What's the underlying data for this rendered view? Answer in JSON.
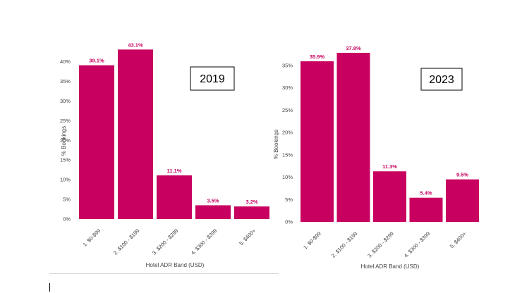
{
  "colors": {
    "bar": "#c8005f",
    "label": "#c8005f"
  },
  "chart_data": [
    {
      "type": "bar",
      "title": "2019",
      "categories": [
        "1. $0-$99",
        "2. $100 - $199",
        "3. $200 - $299",
        "4. $300 - $399",
        "5. $400+"
      ],
      "values": [
        39.1,
        43.1,
        11.1,
        3.5,
        3.2
      ],
      "data_labels": [
        "39.1%",
        "43.1%",
        "11.1%",
        "3.5%",
        "3.2%"
      ],
      "yticks": [
        0,
        5,
        10,
        15,
        20,
        25,
        30,
        35,
        40
      ],
      "ytick_labels": [
        "0%",
        "5%",
        "10%",
        "15%",
        "20%",
        "25%",
        "30%",
        "35%",
        "40%"
      ],
      "ylim": [
        0,
        45
      ],
      "xlabel": "Hotel ADR Band (USD)",
      "ylabel": "% Bookings",
      "grid": false,
      "legend": "none"
    },
    {
      "type": "bar",
      "title": "2023",
      "categories": [
        "1. $0-$99",
        "2. $100 - $199",
        "3. $200 - $299",
        "4. $300 - $399",
        "5. $400+"
      ],
      "values": [
        35.9,
        37.8,
        11.3,
        5.4,
        9.5
      ],
      "data_labels": [
        "35.9%",
        "37.8%",
        "11.3%",
        "5.4%",
        "9.5%"
      ],
      "yticks": [
        0,
        5,
        10,
        15,
        20,
        25,
        30,
        35
      ],
      "ytick_labels": [
        "0%",
        "5%",
        "10%",
        "15%",
        "20%",
        "25%",
        "30%",
        "35%"
      ],
      "ylim": [
        0,
        40
      ],
      "xlabel": "Hotel ADR Band (USD)",
      "ylabel": "% Bookings",
      "grid": false,
      "legend": "none"
    }
  ]
}
